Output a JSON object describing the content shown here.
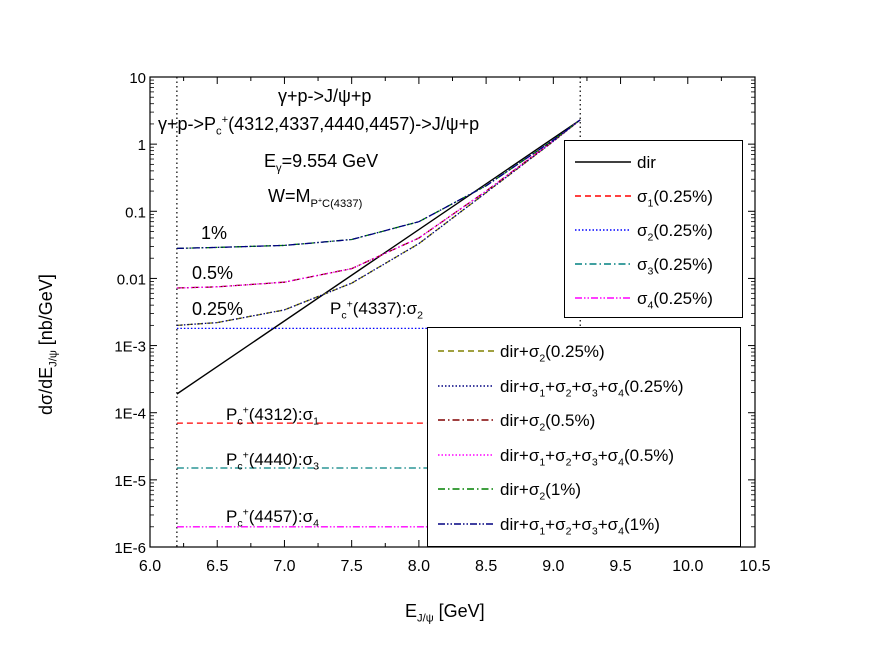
{
  "chart_data": {
    "type": "line",
    "title": "",
    "xlabel": "E_J/ψ [GeV]",
    "ylabel": "dσ/dE_J/ψ [nb/GeV]",
    "xlim": [
      6.0,
      10.5
    ],
    "ylim": [
      1e-06,
      10
    ],
    "yscale": "log",
    "xticks": [
      "6.0",
      "6.5",
      "7.0",
      "7.5",
      "8.0",
      "8.5",
      "9.0",
      "9.5",
      "10.0",
      "10.5"
    ],
    "yticks": [
      "1E-6",
      "1E-5",
      "1E-4",
      "1E-3",
      "0.01",
      "0.1",
      "1",
      "10"
    ],
    "vlines": [
      6.2,
      9.2
    ],
    "annotations": {
      "reaction1": "γ+p->J/ψ+p",
      "reaction2_a": "γ+p->P",
      "reaction2_sub": "c",
      "reaction2_sup": "+",
      "reaction2_b": "(4312,4337,4440,4457)->J/ψ+p",
      "energy_a": "E",
      "energy_sub": "γ",
      "energy_b": "=9.554 GeV",
      "w_a": "W=M",
      "w_sub": "P",
      "w_sub2": "C",
      "w_sup": "+",
      "w_sub3": "(4337)",
      "pct1": "1%",
      "pct05": "0.5%",
      "pct025": "0.25%",
      "pc_a": "P",
      "pc_sub": "c",
      "pc_sup": "+",
      "s2_mass": "(4337):σ",
      "s2_idx": "2",
      "s1_mass": "(4312):σ",
      "s1_idx": "1",
      "s3_mass": "(4440):σ",
      "s3_idx": "3",
      "s4_mass": "(4457):σ",
      "s4_idx": "4"
    },
    "series": [
      {
        "name": "dir",
        "style": "solid",
        "color": "#000000",
        "x": [
          6.2,
          9.2
        ],
        "y": [
          0.00019,
          2.3
        ]
      },
      {
        "name": "σ1(0.25%)",
        "style": "dash",
        "color": "#ff0000",
        "x": [
          6.2,
          9.2
        ],
        "y": [
          7e-05,
          7e-05
        ]
      },
      {
        "name": "σ2(0.25%)",
        "style": "dot",
        "color": "#0000ff",
        "x": [
          6.2,
          9.2
        ],
        "y": [
          0.0018,
          0.0018
        ]
      },
      {
        "name": "σ3(0.25%)",
        "style": "dashdot",
        "color": "#008080",
        "x": [
          6.2,
          9.2
        ],
        "y": [
          1.5e-05,
          1.5e-05
        ]
      },
      {
        "name": "σ4(0.25%)",
        "style": "dashdotdot",
        "color": "#ff00ff",
        "x": [
          6.2,
          9.2
        ],
        "y": [
          2e-06,
          2e-06
        ]
      },
      {
        "name": "dir+σ2(0.25%)",
        "style": "dash",
        "color": "#808000",
        "x": [
          6.2,
          6.5,
          7.0,
          7.5,
          8.0,
          8.5,
          9.0,
          9.2
        ],
        "y": [
          0.002,
          0.0022,
          0.0034,
          0.0085,
          0.033,
          0.19,
          1.1,
          2.3
        ]
      },
      {
        "name": "dir+σ1+σ2+σ3+σ4(0.25%)",
        "style": "dot",
        "color": "#000080",
        "x": [
          6.2,
          6.5,
          7.0,
          7.5,
          8.0,
          8.5,
          9.0,
          9.2
        ],
        "y": [
          0.002,
          0.0022,
          0.0034,
          0.0085,
          0.033,
          0.19,
          1.1,
          2.3
        ]
      },
      {
        "name": "dir+σ2(0.5%)",
        "style": "dashdot",
        "color": "#800000",
        "x": [
          6.2,
          6.5,
          7.0,
          7.5,
          8.0,
          8.5,
          9.0,
          9.2
        ],
        "y": [
          0.0072,
          0.0075,
          0.0088,
          0.014,
          0.04,
          0.2,
          1.12,
          2.3
        ]
      },
      {
        "name": "dir+σ1+σ2+σ3+σ4(0.5%)",
        "style": "dot",
        "color": "#ff00ff",
        "x": [
          6.2,
          6.5,
          7.0,
          7.5,
          8.0,
          8.5,
          9.0,
          9.2
        ],
        "y": [
          0.0072,
          0.0075,
          0.0088,
          0.014,
          0.04,
          0.2,
          1.12,
          2.3
        ]
      },
      {
        "name": "dir+σ2(1%)",
        "style": "dashdot",
        "color": "#008000",
        "x": [
          6.2,
          6.5,
          7.0,
          7.5,
          8.0,
          8.5,
          9.0,
          9.2
        ],
        "y": [
          0.028,
          0.029,
          0.031,
          0.038,
          0.07,
          0.24,
          1.15,
          2.3
        ]
      },
      {
        "name": "dir+σ1+σ2+σ3+σ4(1%)",
        "style": "dashdotdot",
        "color": "#000080",
        "x": [
          6.2,
          6.5,
          7.0,
          7.5,
          8.0,
          8.5,
          9.0,
          9.2
        ],
        "y": [
          0.028,
          0.029,
          0.031,
          0.038,
          0.07,
          0.24,
          1.15,
          2.3
        ]
      }
    ],
    "legend1": [
      {
        "series": 0,
        "base": "dir",
        "sub": "",
        "rest": ""
      },
      {
        "series": 1,
        "base": "σ",
        "sub": "1",
        "rest": "(0.25%)"
      },
      {
        "series": 2,
        "base": "σ",
        "sub": "2",
        "rest": "(0.25%)"
      },
      {
        "series": 3,
        "base": "σ",
        "sub": "3",
        "rest": "(0.25%)"
      },
      {
        "series": 4,
        "base": "σ",
        "sub": "4",
        "rest": "(0.25%)"
      }
    ],
    "legend2": [
      {
        "series": 5,
        "parts": [
          [
            "dir+σ",
            "2"
          ],
          [
            "(0.25%)",
            ""
          ]
        ]
      },
      {
        "series": 6,
        "parts": [
          [
            "dir+σ",
            "1"
          ],
          [
            "+σ",
            "2"
          ],
          [
            "+σ",
            "3"
          ],
          [
            "+σ",
            "4"
          ],
          [
            "(0.25%)",
            ""
          ]
        ]
      },
      {
        "series": 7,
        "parts": [
          [
            "dir+σ",
            "2"
          ],
          [
            "(0.5%)",
            ""
          ]
        ]
      },
      {
        "series": 8,
        "parts": [
          [
            "dir+σ",
            "1"
          ],
          [
            "+σ",
            "2"
          ],
          [
            "+σ",
            "3"
          ],
          [
            "+σ",
            "4"
          ],
          [
            "(0.5%)",
            ""
          ]
        ]
      },
      {
        "series": 9,
        "parts": [
          [
            "dir+σ",
            "2"
          ],
          [
            "(1%)",
            ""
          ]
        ]
      },
      {
        "series": 10,
        "parts": [
          [
            "dir+σ",
            "1"
          ],
          [
            "+σ",
            "2"
          ],
          [
            "+σ",
            "3"
          ],
          [
            "+σ",
            "4"
          ],
          [
            "(1%)",
            ""
          ]
        ]
      }
    ]
  }
}
